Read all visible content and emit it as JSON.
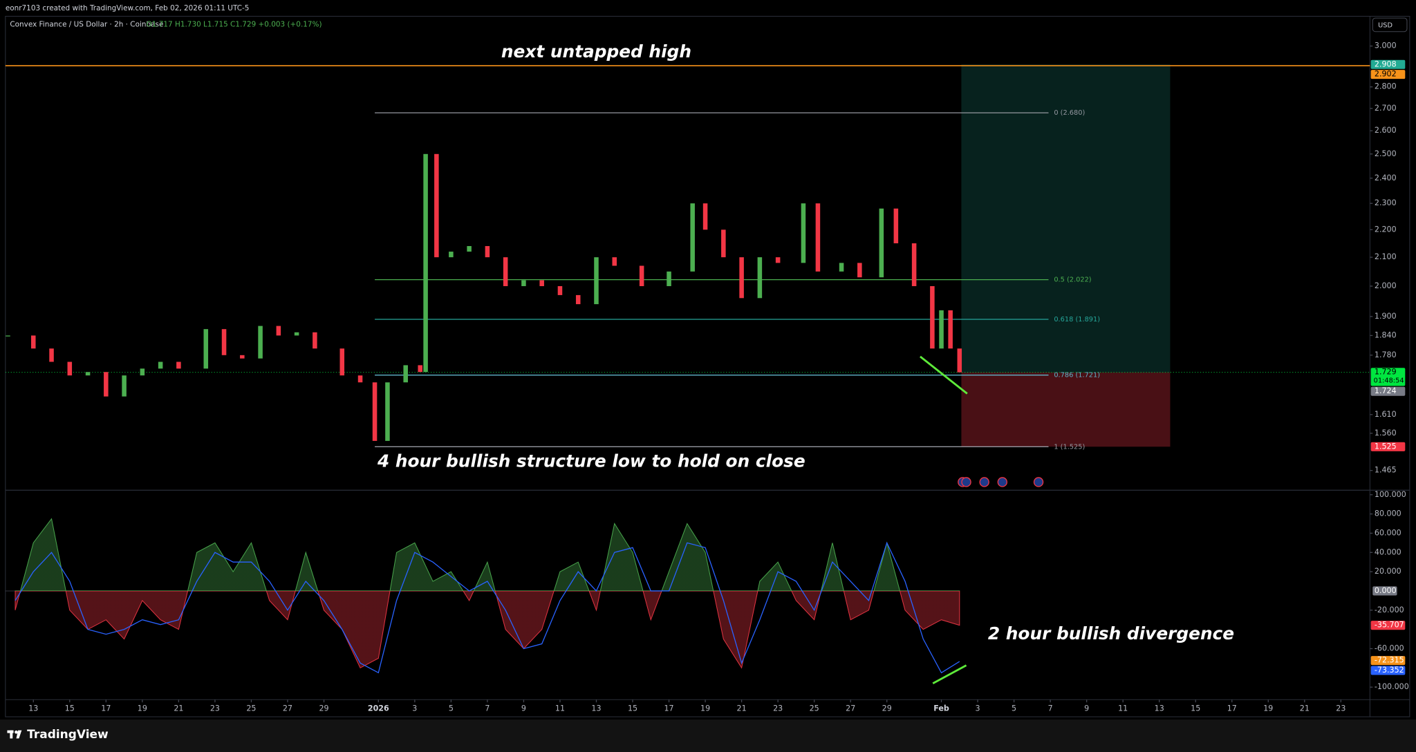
{
  "header": {
    "credit": "eonr7103 created with TradingView.com, Feb 02, 2026 01:11 UTC-5",
    "currency": "USD",
    "logo": "TradingView"
  },
  "chart_data": {
    "type": "candlestick",
    "symbol": "Convex Finance / US Dollar · 2h · Coinbase",
    "ohlc": "O1.717 H1.730 L1.715 C1.729 +0.003 (+0.17%)",
    "log": true,
    "xlim": [
      -1.44,
      73.6
    ],
    "ylim": [
      1.417,
      3.126
    ],
    "yticks": [
      {
        "value": 3.0,
        "label": "3.000"
      },
      {
        "value": 2.8,
        "label": "2.800"
      },
      {
        "value": 2.7,
        "label": "2.700"
      },
      {
        "value": 2.6,
        "label": "2.600"
      },
      {
        "value": 2.5,
        "label": "2.500"
      },
      {
        "value": 2.4,
        "label": "2.400"
      },
      {
        "value": 2.3,
        "label": "2.300"
      },
      {
        "value": 2.2,
        "label": "2.200"
      },
      {
        "value": 2.1,
        "label": "2.100"
      },
      {
        "value": 2.0,
        "label": "2.000"
      },
      {
        "value": 1.9,
        "label": "1.900"
      },
      {
        "value": 1.84,
        "label": "1.840"
      },
      {
        "value": 1.78,
        "label": "1.780"
      },
      {
        "value": 1.61,
        "label": "1.610"
      },
      {
        "value": 1.56,
        "label": "1.560"
      },
      {
        "value": 1.465,
        "label": "1.465"
      }
    ],
    "xticks": [
      {
        "value": 0,
        "label": "13"
      },
      {
        "value": 2,
        "label": "15"
      },
      {
        "value": 4,
        "label": "17"
      },
      {
        "value": 6,
        "label": "19"
      },
      {
        "value": 8,
        "label": "21"
      },
      {
        "value": 10,
        "label": "23"
      },
      {
        "value": 12,
        "label": "25"
      },
      {
        "value": 14,
        "label": "27"
      },
      {
        "value": 16,
        "label": "29"
      },
      {
        "value": 19,
        "label": "2026"
      },
      {
        "value": 21,
        "label": "3"
      },
      {
        "value": 23,
        "label": "5"
      },
      {
        "value": 25,
        "label": "7"
      },
      {
        "value": 27,
        "label": "9"
      },
      {
        "value": 29,
        "label": "11"
      },
      {
        "value": 31,
        "label": "13"
      },
      {
        "value": 33,
        "label": "15"
      },
      {
        "value": 35,
        "label": "17"
      },
      {
        "value": 37,
        "label": "19"
      },
      {
        "value": 39,
        "label": "21"
      },
      {
        "value": 41,
        "label": "23"
      },
      {
        "value": 43,
        "label": "25"
      },
      {
        "value": 45,
        "label": "27"
      },
      {
        "value": 47,
        "label": "29"
      },
      {
        "value": 50,
        "label": "Feb"
      },
      {
        "value": 52,
        "label": "3"
      },
      {
        "value": 54,
        "label": "5"
      },
      {
        "value": 56,
        "label": "7"
      },
      {
        "value": 58,
        "label": "9"
      },
      {
        "value": 60,
        "label": "11"
      },
      {
        "value": 62,
        "label": "13"
      },
      {
        "value": 64,
        "label": "15"
      },
      {
        "value": 66,
        "label": "17"
      },
      {
        "value": 68,
        "label": "19"
      },
      {
        "value": 70,
        "label": "21"
      },
      {
        "value": 72,
        "label": "23"
      }
    ],
    "x": [
      -1.4,
      0,
      1,
      2,
      3,
      4,
      5,
      6,
      7,
      8,
      9.5,
      10.5,
      11.5,
      12.5,
      13.5,
      14.5,
      15.5,
      17,
      18,
      18.8,
      19.5,
      20.5,
      21.3,
      21.6,
      22.2,
      23,
      24,
      25,
      26,
      27,
      28,
      29,
      30,
      31,
      32,
      33.5,
      35,
      36.3,
      37,
      38,
      39,
      40,
      41,
      42.4,
      43.2,
      44.5,
      45.5,
      46.7,
      47.5,
      48.5,
      49.5,
      50,
      50.5,
      51
    ],
    "close": [
      1.84,
      1.8,
      1.76,
      1.72,
      1.73,
      1.66,
      1.72,
      1.74,
      1.76,
      1.74,
      1.86,
      1.78,
      1.77,
      1.87,
      1.84,
      1.85,
      1.8,
      1.72,
      1.7,
      1.54,
      1.7,
      1.75,
      1.73,
      2.5,
      2.1,
      2.12,
      2.14,
      2.1,
      2.0,
      2.02,
      2.0,
      1.97,
      1.94,
      2.1,
      2.07,
      2.0,
      2.05,
      2.3,
      2.2,
      2.1,
      1.96,
      2.1,
      2.08,
      2.3,
      2.05,
      2.08,
      2.03,
      2.28,
      2.15,
      2.0,
      1.8,
      1.92,
      1.8,
      1.729
    ],
    "up_color": "#4caf50",
    "down_color": "#f23645",
    "price_labels": [
      {
        "value": 2.908,
        "label": "2.908",
        "color": "#22ab94",
        "text_color": "#ffffff"
      },
      {
        "value": 2.902,
        "label": "2.902",
        "color": "#f7931a",
        "text_color": "#000000"
      },
      {
        "value": 1.729,
        "label": "1.729",
        "color": "#00e640",
        "text_color": "#000000"
      },
      {
        "value": 1.724,
        "label": "1.724",
        "color": "#787b86",
        "text_color": "#ffffff"
      },
      {
        "value": 1.525,
        "label": "1.525",
        "color": "#f23645",
        "text_color": "#ffffff"
      }
    ],
    "countdown": "01:48:54",
    "fib_x": [
      18.8,
      55.9
    ],
    "fib_levels": [
      {
        "label": "0 (2.680)",
        "price": 2.68,
        "color": "#9598a1"
      },
      {
        "label": "0.5 (2.022)",
        "price": 2.022,
        "color": "#4caf50"
      },
      {
        "label": "0.618 (1.891)",
        "price": 1.891,
        "color": "#26a69a"
      },
      {
        "label": "0.786 (1.721)",
        "price": 1.721,
        "color": "#5fb3c9"
      },
      {
        "label": "1 (1.525)",
        "price": 1.525,
        "color": "#9598a1"
      }
    ],
    "position_x": [
      51.1,
      62.6
    ],
    "annotations": [
      "next untapped high",
      "4 hour bullish structure low to hold on close",
      "2 hour bullish divergence"
    ],
    "oscillator": {
      "ylim": [
        -113,
        104.7
      ],
      "yticks": [
        {
          "value": 100,
          "label": "100.000"
        },
        {
          "value": 80,
          "label": "80.000"
        },
        {
          "value": 60,
          "label": "60.000"
        },
        {
          "value": 40,
          "label": "40.000"
        },
        {
          "value": 20,
          "label": "20.000"
        },
        {
          "value": -20,
          "label": "-20.000"
        },
        {
          "value": -60,
          "label": "-60.000"
        },
        {
          "value": -100,
          "label": "-100.000"
        }
      ],
      "zero_label": {
        "value": 0,
        "label": "0.000"
      },
      "x": [
        -1,
        0,
        1,
        2,
        3,
        4,
        5,
        6,
        7,
        8,
        9,
        10,
        11,
        12,
        13,
        14,
        15,
        16,
        17,
        18,
        19,
        20,
        21,
        22,
        23,
        24,
        25,
        26,
        27,
        28,
        29,
        30,
        31,
        32,
        33,
        34,
        35,
        36,
        37,
        38,
        39,
        40,
        41,
        42,
        43,
        44,
        45,
        46,
        47,
        48,
        49,
        50,
        51
      ],
      "histogram": {
        "pos_color": "#4caf50",
        "neg_color": "#f23645",
        "values": [
          -20,
          50,
          75,
          -20,
          -40,
          -30,
          -50,
          -10,
          -30,
          -40,
          40,
          50,
          20,
          50,
          -10,
          -30,
          40,
          -20,
          -40,
          -80,
          -70,
          40,
          50,
          10,
          20,
          -10,
          30,
          -40,
          -60,
          -40,
          20,
          30,
          -20,
          70,
          40,
          -30,
          20,
          70,
          40,
          -50,
          -80,
          10,
          30,
          -10,
          -30,
          50,
          -30,
          -20,
          50,
          -20,
          -40,
          -30,
          -35.707
        ]
      },
      "line": {
        "color": "#2962ff",
        "values": [
          -10,
          20,
          40,
          10,
          -40,
          -45,
          -40,
          -30,
          -35,
          -30,
          10,
          40,
          30,
          30,
          10,
          -20,
          10,
          -10,
          -40,
          -75,
          -85,
          -10,
          40,
          30,
          15,
          0,
          10,
          -20,
          -60,
          -55,
          -10,
          20,
          0,
          40,
          45,
          0,
          0,
          50,
          45,
          -10,
          -75,
          -30,
          20,
          10,
          -20,
          30,
          10,
          -10,
          50,
          10,
          -50,
          -85,
          -73.352
        ]
      },
      "value_labels": [
        {
          "value": -35.707,
          "label": "-35.707",
          "color": "#f23645"
        },
        {
          "value": -72.315,
          "label": "-72.315",
          "color": "#f7931a"
        },
        {
          "value": -73.352,
          "label": "-73.352",
          "color": "#2962ff"
        }
      ]
    }
  }
}
